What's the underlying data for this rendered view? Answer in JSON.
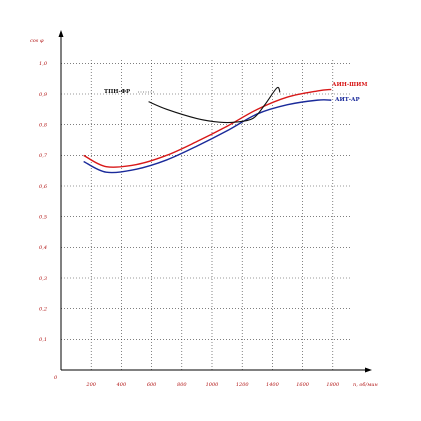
{
  "chart_data": {
    "type": "line",
    "title": "",
    "xlabel": "n, об/мин",
    "ylabel": "cos φ",
    "origin_label": "0",
    "xlim": [
      0,
      2000
    ],
    "ylim": [
      0,
      1.05
    ],
    "x_ticks": [
      200,
      400,
      600,
      800,
      1000,
      1200,
      1400,
      1600,
      1800
    ],
    "x_tick_labels": [
      "200",
      "400",
      "600",
      "800",
      "1000",
      "1200",
      "1400",
      "1600",
      "1800"
    ],
    "y_ticks": [
      0.1,
      0.2,
      0.3,
      0.4,
      0.5,
      0.6,
      0.7,
      0.8,
      0.9,
      1.0
    ],
    "y_tick_labels": [
      "0,1",
      "0,2",
      "0,3",
      "0,4",
      "0,5",
      "0,6",
      "0,7",
      "0,8",
      "0,9",
      "1,0"
    ],
    "grid": true,
    "series": [
      {
        "name": "АИН-ШИМ",
        "color": "#d81818",
        "x": [
          150,
          300,
          500,
          700,
          900,
          1100,
          1300,
          1500,
          1700,
          1790
        ],
        "y": [
          0.7,
          0.663,
          0.67,
          0.7,
          0.745,
          0.795,
          0.85,
          0.89,
          0.91,
          0.915
        ]
      },
      {
        "name": "АИТ-АР",
        "color": "#1a2a9a",
        "x": [
          150,
          300,
          500,
          700,
          900,
          1100,
          1300,
          1500,
          1700,
          1790
        ],
        "y": [
          0.68,
          0.645,
          0.655,
          0.685,
          0.73,
          0.78,
          0.835,
          0.865,
          0.88,
          0.88
        ]
      },
      {
        "name": "ТПН-ФР",
        "color": "#111111",
        "x": [
          580,
          700,
          900,
          1050,
          1150,
          1270,
          1350,
          1430,
          1450
        ],
        "y": [
          0.875,
          0.85,
          0.82,
          0.808,
          0.808,
          0.82,
          0.865,
          0.92,
          0.905
        ]
      }
    ]
  }
}
